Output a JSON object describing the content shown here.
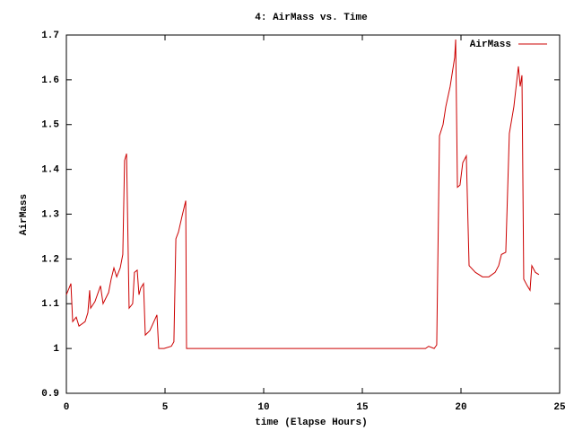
{
  "chart_data": {
    "type": "line",
    "title": "4: AirMass vs. Time",
    "x_label": "time (Elapse Hours)",
    "y_label": "AirMass",
    "xlim": [
      0,
      25
    ],
    "xticks": [
      0,
      5,
      10,
      15,
      20,
      25
    ],
    "ylim": [
      0.9,
      1.7
    ],
    "yticks": [
      0.9,
      1,
      1.1,
      1.2,
      1.3,
      1.4,
      1.5,
      1.6,
      1.7
    ],
    "legend": "top-right",
    "x": [
      0,
      0.23,
      0.32,
      0.5,
      0.64,
      0.95,
      1.09,
      1.18,
      1.23,
      1.45,
      1.73,
      1.86,
      2.14,
      2.27,
      2.41,
      2.55,
      2.73,
      2.86,
      2.95,
      3.05,
      3.18,
      3.36,
      3.45,
      3.59,
      3.68,
      3.77,
      3.91,
      4.0,
      4.23,
      4.59,
      4.68,
      4.95,
      5.32,
      5.45,
      5.55,
      5.68,
      5.86,
      6.05,
      6.09,
      18.2,
      18.36,
      18.64,
      18.77,
      18.91,
      19.09,
      19.23,
      19.45,
      19.68,
      19.73,
      19.82,
      19.95,
      20.09,
      20.27,
      20.41,
      20.73,
      21.09,
      21.41,
      21.73,
      21.91,
      22.05,
      22.27,
      22.45,
      22.68,
      22.82,
      22.91,
      23.0,
      23.09,
      23.18,
      23.36,
      23.5,
      23.59,
      23.77,
      23.95
    ],
    "series": [
      {
        "name": "AirMass",
        "color": "#cc0000",
        "values": [
          1.12,
          1.145,
          1.06,
          1.07,
          1.05,
          1.06,
          1.08,
          1.13,
          1.09,
          1.105,
          1.14,
          1.1,
          1.125,
          1.155,
          1.18,
          1.16,
          1.18,
          1.21,
          1.42,
          1.435,
          1.09,
          1.1,
          1.17,
          1.175,
          1.12,
          1.135,
          1.145,
          1.03,
          1.04,
          1.075,
          1.0,
          1.0,
          1.005,
          1.015,
          1.245,
          1.26,
          1.295,
          1.33,
          1.0,
          1.0,
          1.005,
          1.0,
          1.008,
          1.475,
          1.5,
          1.54,
          1.585,
          1.65,
          1.69,
          1.36,
          1.365,
          1.415,
          1.43,
          1.185,
          1.17,
          1.16,
          1.16,
          1.17,
          1.185,
          1.21,
          1.215,
          1.48,
          1.54,
          1.595,
          1.63,
          1.585,
          1.61,
          1.155,
          1.14,
          1.13,
          1.185,
          1.17,
          1.165
        ]
      }
    ]
  }
}
